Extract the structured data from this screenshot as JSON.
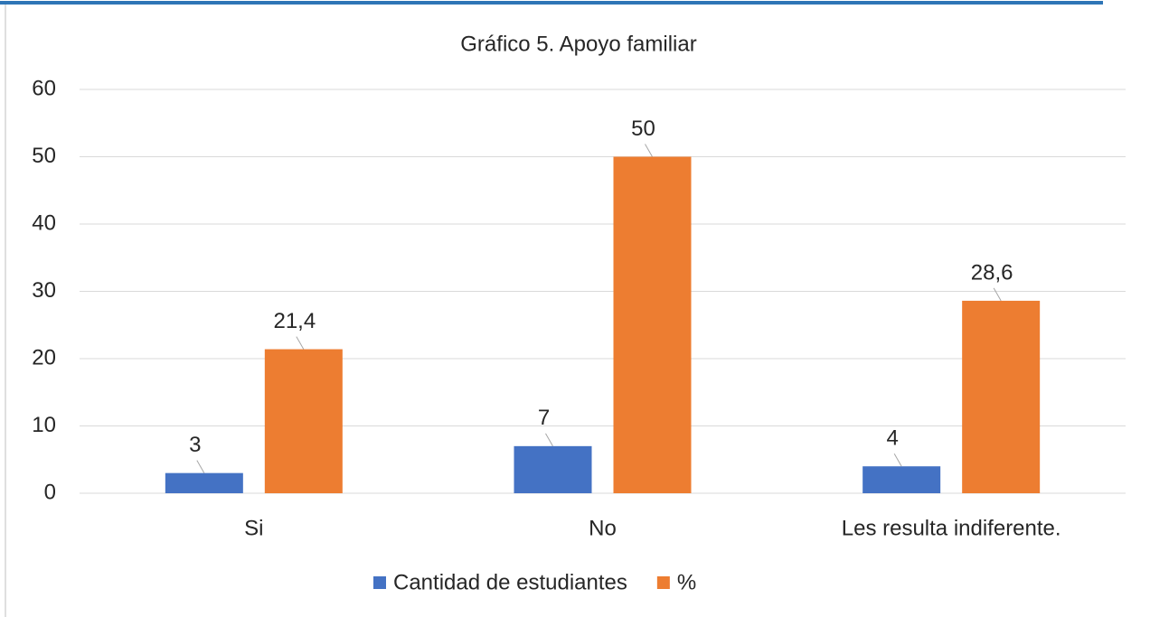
{
  "chart_data": {
    "type": "bar",
    "title": "Gráfico 5. Apoyo familiar",
    "categories": [
      "Si",
      "No",
      "Les resulta indiferente."
    ],
    "series": [
      {
        "name": "Cantidad de estudiantes",
        "color": "#4472c4",
        "values": [
          3,
          7,
          4
        ]
      },
      {
        "name": "%",
        "color": "#ed7d31",
        "values": [
          21.4,
          50,
          28.6
        ],
        "value_labels": [
          "21,4",
          "50",
          "28,6"
        ]
      }
    ],
    "ylim": [
      0,
      60
    ],
    "yticks": [
      0,
      10,
      20,
      30,
      40,
      50,
      60
    ],
    "grid": true,
    "legend": "bottom"
  }
}
